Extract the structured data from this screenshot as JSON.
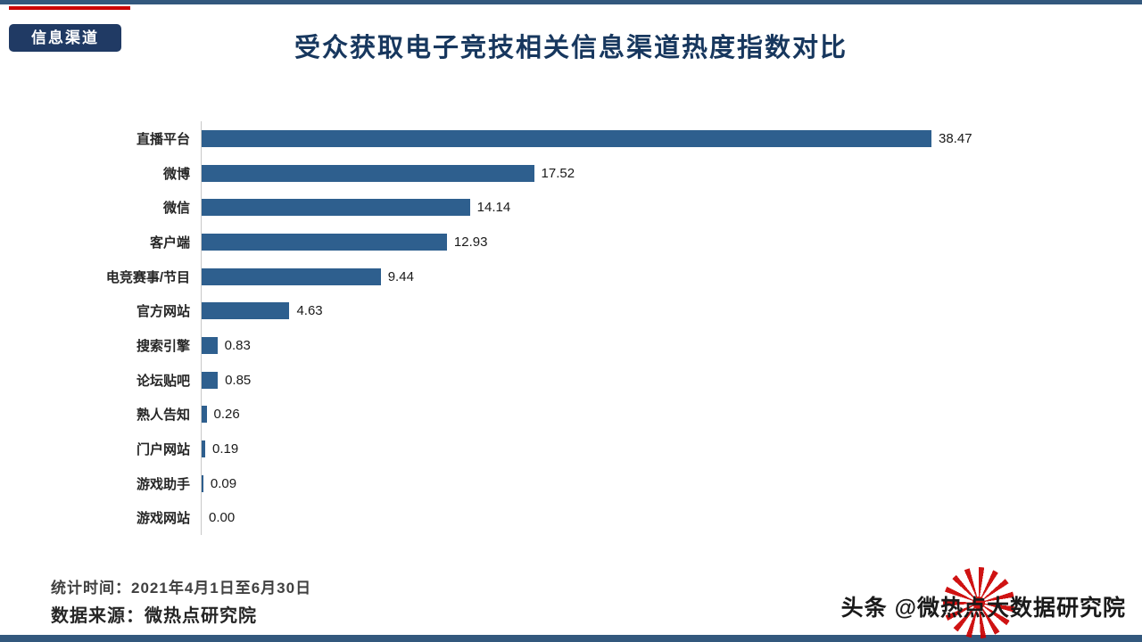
{
  "page": {
    "badge": "信息渠道",
    "title": "受众获取电子竞技相关信息渠道热度指数对比",
    "footer": {
      "stat_time": "统计时间：2021年4月1日至6月30日",
      "source": "数据来源：微热点研究院"
    },
    "watermark": "头条 @微热点大数据研究院"
  },
  "colors": {
    "bar": "#2e5f8e",
    "title": "#17375e",
    "badge_bg": "#203a64",
    "border": "#33587d",
    "accent_red": "#cc0000",
    "axis": "#c9c9c9"
  },
  "chart_data": {
    "type": "bar",
    "orientation": "horizontal",
    "title": "受众获取电子竞技相关信息渠道热度指数对比",
    "categories": [
      "直播平台",
      "微博",
      "微信",
      "客户端",
      "电竞赛事/节目",
      "官方网站",
      "搜索引擎",
      "论坛贴吧",
      "熟人告知",
      "门户网站",
      "游戏助手",
      "游戏网站"
    ],
    "values": [
      38.47,
      17.52,
      14.14,
      12.93,
      9.44,
      4.63,
      0.83,
      0.85,
      0.26,
      0.19,
      0.09,
      0.0
    ],
    "value_label_format": "0.00",
    "xlabel": "",
    "ylabel": "",
    "xlim": [
      0,
      40
    ],
    "grid": false,
    "legend": "none"
  }
}
